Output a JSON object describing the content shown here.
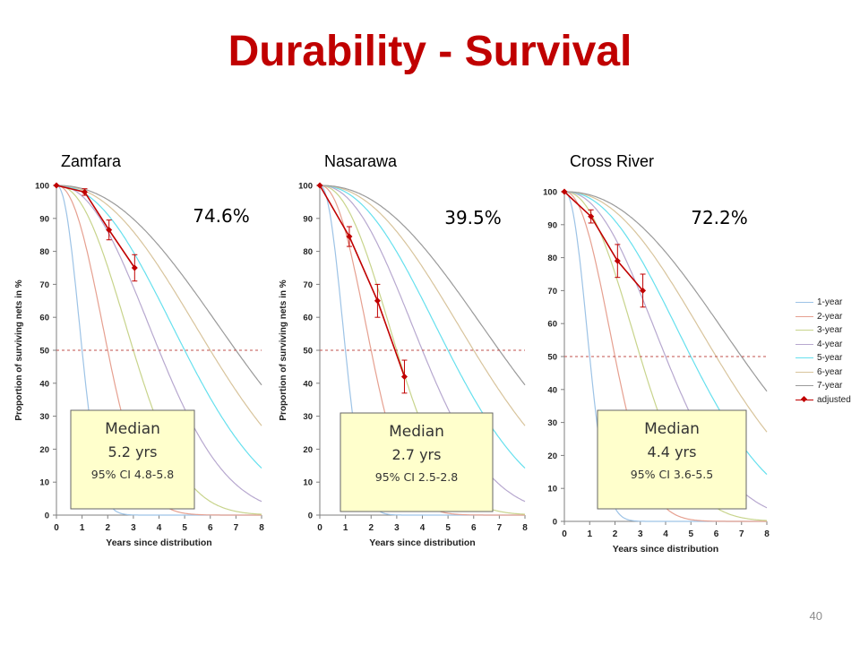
{
  "slide": {
    "title": "Durability - Survival",
    "page_number": "40"
  },
  "legend": [
    {
      "label": "1-year",
      "color": "#9dc3e6"
    },
    {
      "label": "2-year",
      "color": "#e6a090"
    },
    {
      "label": "3-year",
      "color": "#c8d48c"
    },
    {
      "label": "4-year",
      "color": "#b7a8cf"
    },
    {
      "label": "5-year",
      "color": "#66e0ee"
    },
    {
      "label": "6-year",
      "color": "#d8c49c"
    },
    {
      "label": "7-year",
      "color": "#9a9a9a"
    },
    {
      "label": "adjusted",
      "color": "#c00000"
    }
  ],
  "chart_data": [
    {
      "type": "line",
      "region": "Zamfara",
      "big_label": "74.6%",
      "median": {
        "heading": "Median",
        "value": "5.2 yrs",
        "ci": "95% CI 4.8-5.8"
      },
      "xlabel": "Years since distribution",
      "ylabel": "Proportion of surviving nets in %",
      "xlim": [
        0,
        8
      ],
      "ylim": [
        0,
        100
      ],
      "x_ticks": [
        "0",
        "1",
        "2",
        "3",
        "4",
        "5",
        "6",
        "7",
        "8"
      ],
      "y_ticks": [
        "0",
        "10",
        "20",
        "30",
        "40",
        "50",
        "60",
        "70",
        "80",
        "90",
        "100"
      ],
      "reference_line_y": 50,
      "reference_curve_half_lives": [
        1,
        2,
        3,
        4,
        5,
        6,
        7
      ],
      "adjusted": [
        {
          "x": 0,
          "y": 100
        },
        {
          "x": 1.1,
          "y": 98,
          "err": 1
        },
        {
          "x": 2.05,
          "y": 86.5,
          "err": 3
        },
        {
          "x": 3.05,
          "y": 75,
          "err": 4
        }
      ]
    },
    {
      "type": "line",
      "region": "Nasarawa",
      "big_label": "39.5%",
      "median": {
        "heading": "Median",
        "value": "2.7 yrs",
        "ci": "95% CI 2.5-2.8"
      },
      "xlabel": "Years since distribution",
      "ylabel": "Proportion of surviving nets in %",
      "xlim": [
        0,
        8
      ],
      "ylim": [
        0,
        100
      ],
      "x_ticks": [
        "0",
        "1",
        "2",
        "3",
        "4",
        "5",
        "6",
        "7",
        "8"
      ],
      "y_ticks": [
        "0",
        "10",
        "20",
        "30",
        "40",
        "50",
        "60",
        "70",
        "80",
        "90",
        "100"
      ],
      "reference_line_y": 50,
      "reference_curve_half_lives": [
        1,
        2,
        3,
        4,
        5,
        6,
        7
      ],
      "adjusted": [
        {
          "x": 0,
          "y": 100
        },
        {
          "x": 1.15,
          "y": 84.5,
          "err": 3
        },
        {
          "x": 2.25,
          "y": 65,
          "err": 5
        },
        {
          "x": 3.3,
          "y": 42,
          "err": 5
        }
      ]
    },
    {
      "type": "line",
      "region": "Cross River",
      "big_label": "72.2%",
      "median": {
        "heading": "Median",
        "value": "4.4 yrs",
        "ci": "95% CI 3.6-5.5"
      },
      "xlabel": "Years since distribution",
      "ylabel": "",
      "xlim": [
        0,
        8
      ],
      "ylim": [
        0,
        100
      ],
      "x_ticks": [
        "0",
        "1",
        "2",
        "3",
        "4",
        "5",
        "6",
        "7",
        "8"
      ],
      "y_ticks": [
        "0",
        "10",
        "20",
        "30",
        "40",
        "50",
        "60",
        "70",
        "80",
        "90",
        "100"
      ],
      "reference_line_y": 50,
      "reference_curve_half_lives": [
        1,
        2,
        3,
        4,
        5,
        6,
        7
      ],
      "adjusted": [
        {
          "x": 0,
          "y": 100
        },
        {
          "x": 1.05,
          "y": 92.5,
          "err": 2
        },
        {
          "x": 2.1,
          "y": 79,
          "err": 5
        },
        {
          "x": 3.1,
          "y": 70,
          "err": 5
        }
      ]
    }
  ]
}
